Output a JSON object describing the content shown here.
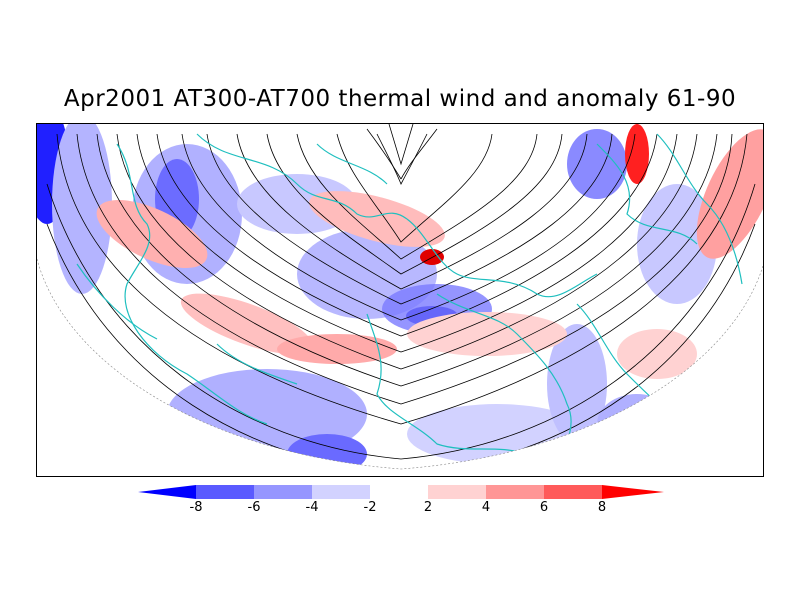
{
  "title": "Apr2001 AT300-AT700 thermal wind and anomaly 61-90",
  "colorbar": {
    "ticks": [
      "-8",
      "-6",
      "-4",
      "-2",
      "2",
      "4",
      "6",
      "8"
    ],
    "colors": [
      "#0000ff",
      "#5a5aff",
      "#9696ff",
      "#d2d2ff",
      "#ffffff",
      "#ffd2d2",
      "#ff9696",
      "#ff5a5a",
      "#ff0000"
    ]
  },
  "map": {
    "land_outline_color": "#1fbfbf",
    "streamline_color": "#000000"
  }
}
